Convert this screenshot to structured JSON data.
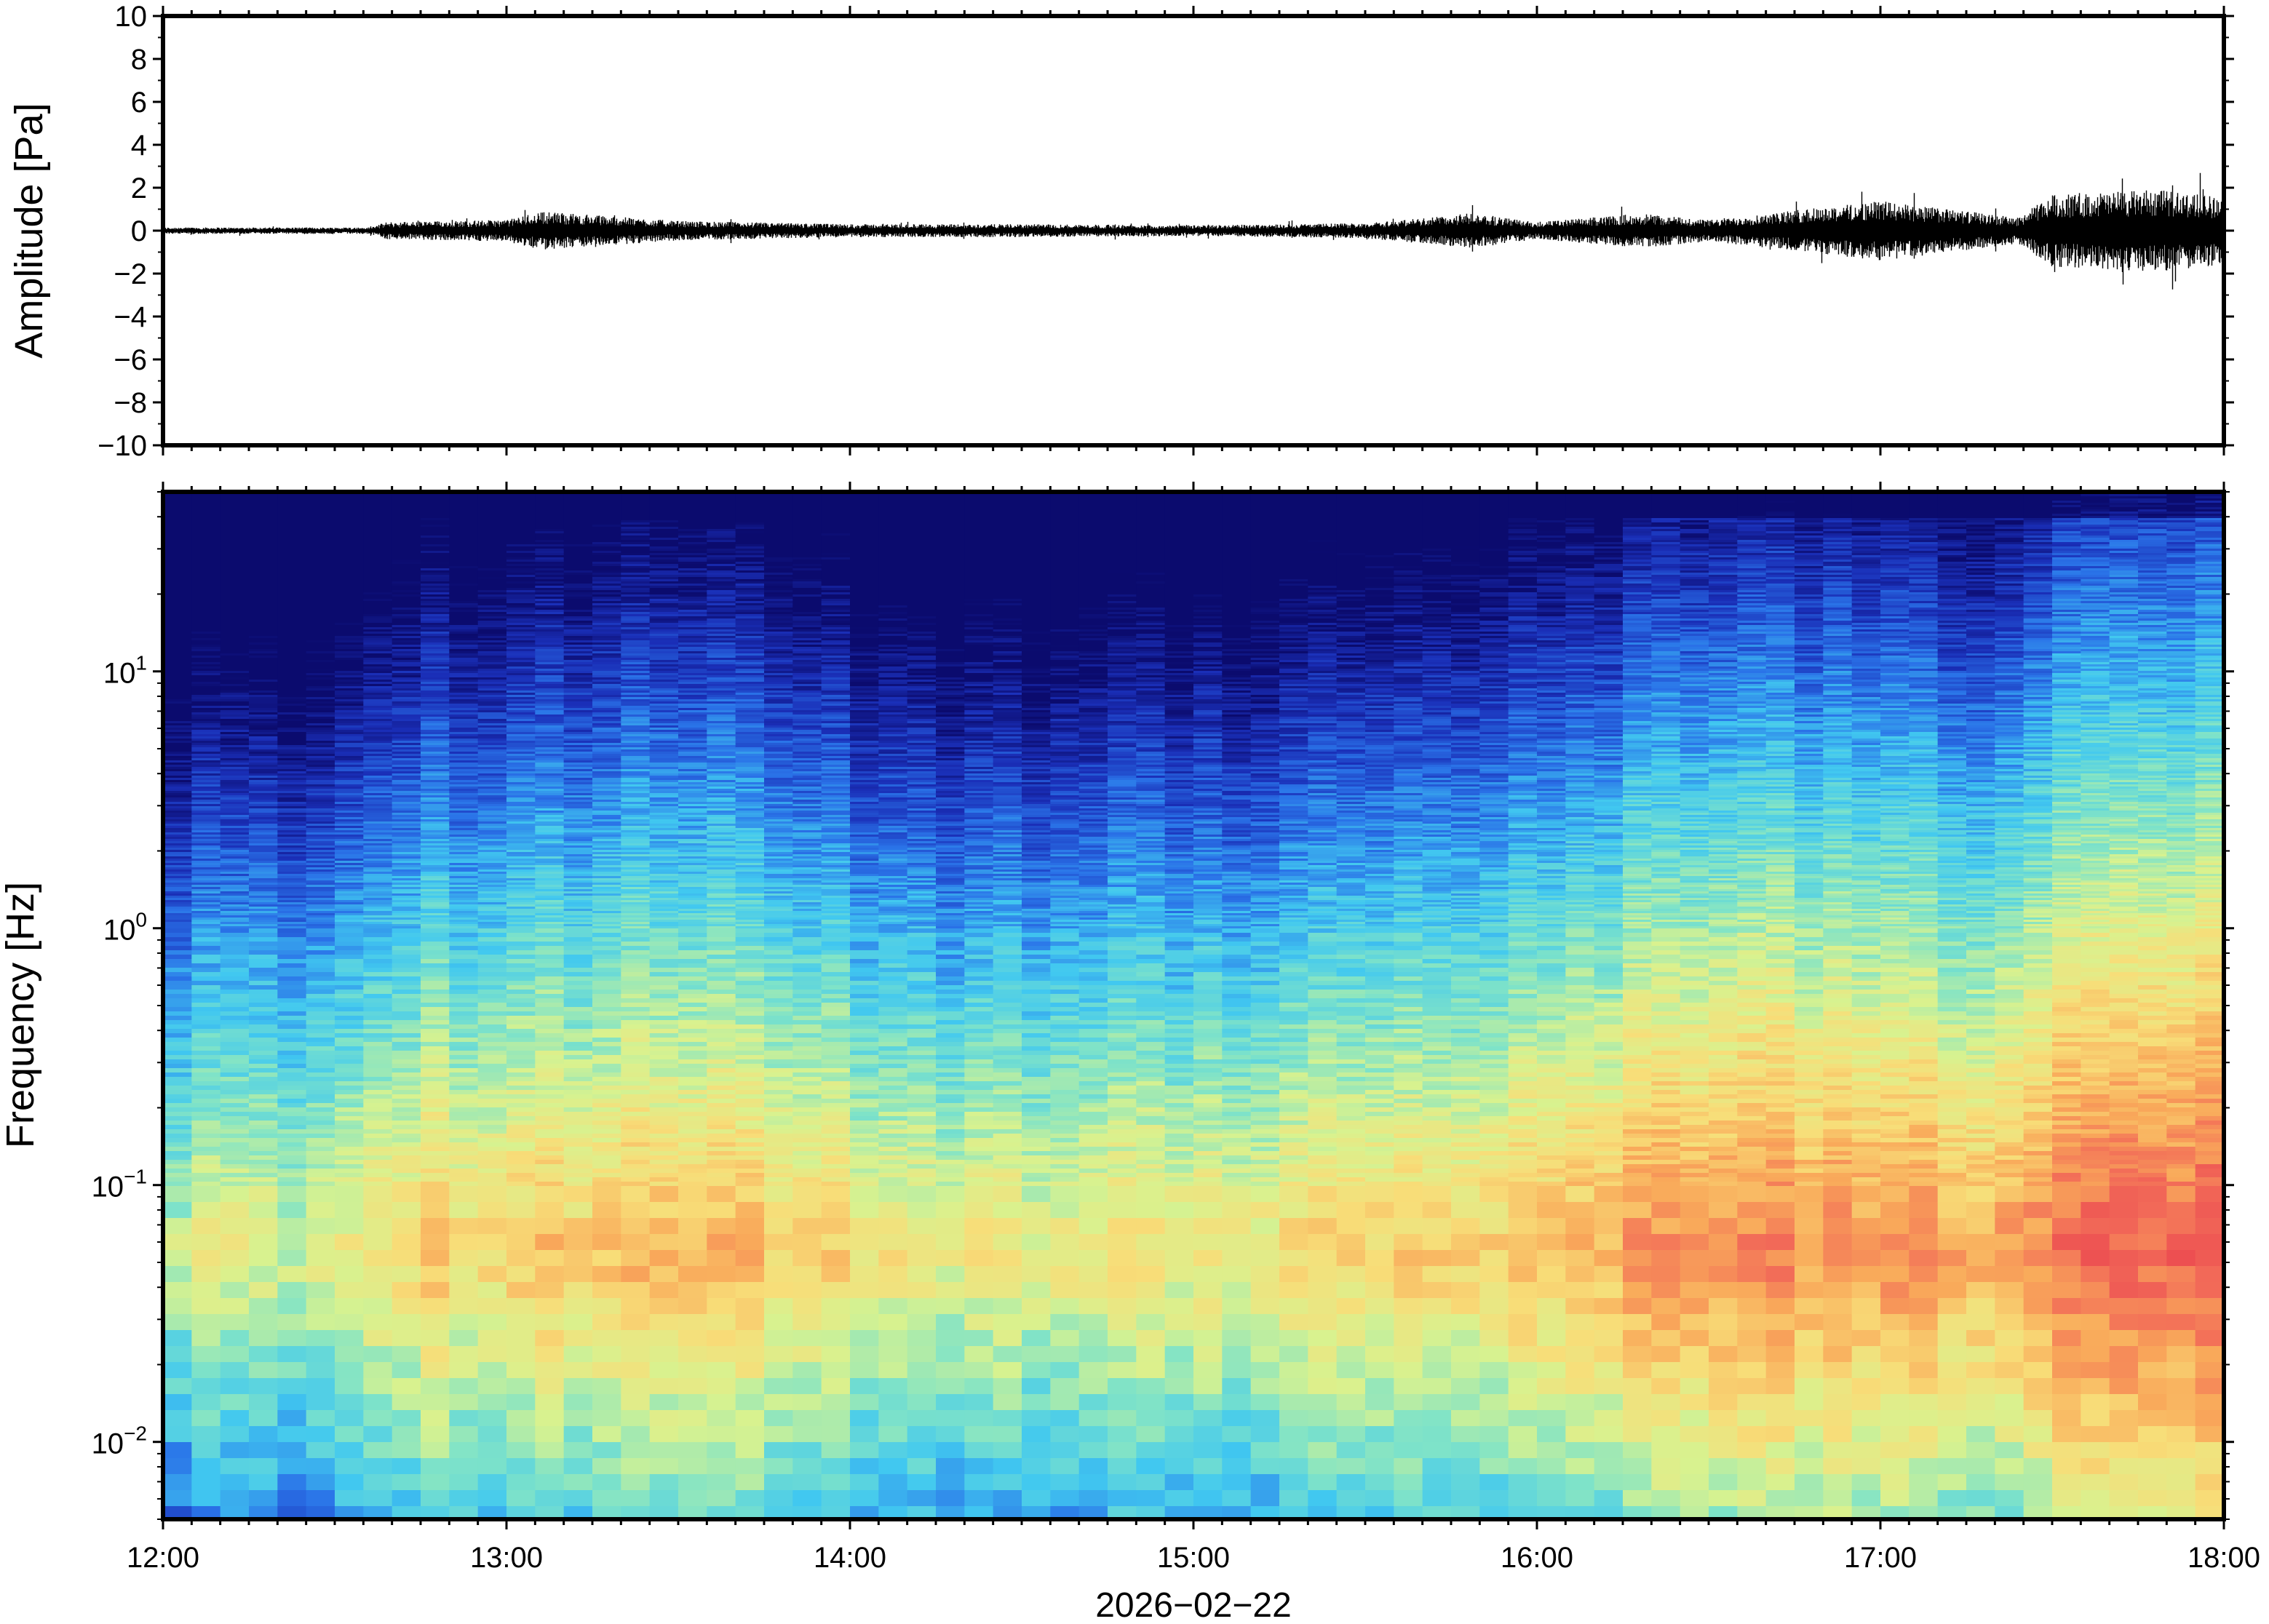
{
  "chart_data": [
    {
      "type": "line",
      "panel": "waveform",
      "title": "",
      "ylabel": "Amplitude [Pa]",
      "ylim": [
        -10,
        10
      ],
      "yticks": [
        -10,
        -8,
        -6,
        -4,
        -2,
        0,
        2,
        4,
        6,
        8,
        10
      ],
      "ytick_labels": [
        "−10",
        "−8",
        "−6",
        "−4",
        "−2",
        "0",
        "2",
        "4",
        "6",
        "8",
        "10"
      ],
      "x_range": [
        "12:00",
        "18:00"
      ],
      "envelope": {
        "x_hours": [
          12.0,
          12.6,
          12.65,
          13.0,
          13.1,
          13.5,
          14.0,
          14.5,
          15.0,
          15.5,
          15.8,
          16.0,
          16.3,
          16.5,
          17.0,
          17.4,
          17.5,
          17.8,
          18.0
        ],
        "amplitude_pa": [
          0.15,
          0.15,
          0.4,
          0.5,
          0.9,
          0.45,
          0.3,
          0.3,
          0.25,
          0.35,
          0.8,
          0.4,
          0.8,
          0.5,
          1.4,
          0.6,
          1.7,
          1.9,
          1.6
        ]
      },
      "grid": false,
      "line_color": "#000000"
    },
    {
      "type": "heatmap",
      "panel": "spectrogram",
      "title": "",
      "ylabel": "Frequency [Hz]",
      "yscale": "log",
      "ylim": [
        0.005,
        50
      ],
      "yticks": [
        0.01,
        0.1,
        1,
        10
      ],
      "ytick_labels": [
        {
          "base": "10",
          "exp": "−2"
        },
        {
          "base": "10",
          "exp": "−1"
        },
        {
          "base": "10",
          "exp": "0"
        },
        {
          "base": "10",
          "exp": "1"
        }
      ],
      "xlabel": "2026−02−22",
      "xticks": [
        "12:00",
        "13:00",
        "14:00",
        "15:00",
        "16:00",
        "17:00",
        "18:00"
      ],
      "x_hours": [
        12,
        13,
        14,
        15,
        16,
        17,
        18
      ],
      "time_columns": 72,
      "colormap": [
        "#0b0b6e",
        "#1a2fb8",
        "#2a73e8",
        "#41c8f0",
        "#7fe3c8",
        "#d8f28f",
        "#f8dd78",
        "#f9a95a",
        "#f26a58",
        "#e8384c"
      ],
      "energy_profile": {
        "x_hours": [
          12.0,
          12.6,
          12.65,
          13.0,
          13.6,
          14.3,
          14.8,
          15.2,
          15.6,
          16.0,
          16.3,
          16.6,
          17.0,
          17.4,
          17.5,
          18.0
        ],
        "relative_level": [
          0.15,
          0.2,
          0.45,
          0.5,
          0.55,
          0.25,
          0.3,
          0.35,
          0.5,
          0.55,
          0.7,
          0.75,
          0.8,
          0.6,
          1.0,
          1.0
        ]
      },
      "peak_frequency_hz": 0.06,
      "grid": false
    }
  ]
}
